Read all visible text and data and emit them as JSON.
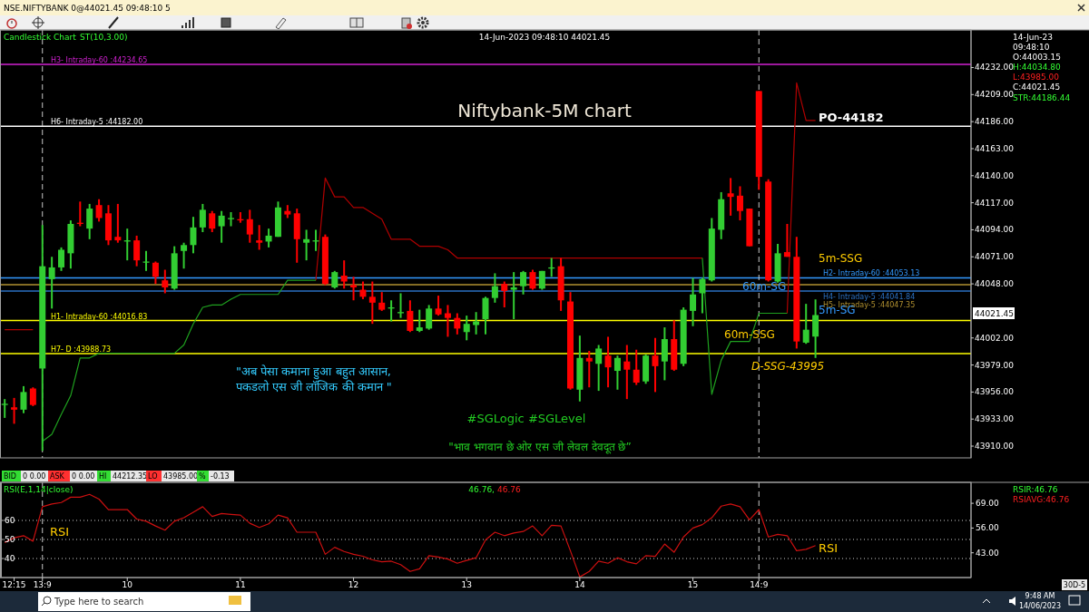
{
  "chart_data": [
    {
      "type": "candlestick",
      "title": "Niftybank-5M chart",
      "categories": [
        null,
        "12:15",
        null,
        null,
        "13:9",
        null,
        null,
        null,
        null,
        null,
        null,
        null,
        null,
        "10",
        null,
        null,
        null,
        null,
        null,
        null,
        null,
        null,
        null,
        null,
        null,
        "11",
        null,
        null,
        null,
        null,
        null,
        null,
        null,
        null,
        null,
        null,
        null,
        "12",
        null,
        null,
        null,
        null,
        null,
        null,
        null,
        null,
        null,
        null,
        null,
        "13",
        null,
        null,
        null,
        null,
        null,
        null,
        null,
        null,
        null,
        null,
        null,
        "14",
        null,
        null,
        null,
        null,
        null,
        null,
        null,
        null,
        null,
        null,
        null,
        "15",
        null,
        null,
        null,
        null,
        null,
        null,
        "14:9",
        null,
        null,
        null,
        null,
        null,
        null,
        null,
        null,
        null,
        null,
        null,
        null,
        null,
        null,
        null,
        null,
        null,
        null,
        null,
        null,
        null,
        null
      ],
      "ohlc": [
        [
          43945,
          43950,
          43934,
          43946
        ],
        [
          43943,
          43951,
          43929,
          43941
        ],
        [
          43941,
          43961,
          43938,
          43956
        ],
        [
          43959,
          43960,
          43944,
          43945
        ],
        [
          43976,
          44098,
          43906,
          44063
        ],
        [
          44052,
          44071,
          44027,
          44062
        ],
        [
          44062,
          44079,
          44059,
          44077
        ],
        [
          44074,
          44102,
          44061,
          44099
        ],
        [
          44100,
          44118,
          44097,
          44099
        ],
        [
          44095,
          44116,
          44086,
          44112
        ],
        [
          44115,
          44120,
          44101,
          44104
        ],
        [
          44108,
          44115,
          44081,
          44085
        ],
        [
          44088,
          44116,
          44083,
          44085
        ],
        [
          44084,
          44095,
          44068,
          44085
        ],
        [
          44085,
          44089,
          44063,
          44068
        ],
        [
          44066,
          44076,
          44059,
          44067
        ],
        [
          44066,
          44067,
          44048,
          44054
        ],
        [
          44051,
          44060,
          44040,
          44045
        ],
        [
          44044,
          44080,
          44043,
          44074
        ],
        [
          44076,
          44083,
          44061,
          44081
        ],
        [
          44081,
          44105,
          44074,
          44096
        ],
        [
          44096,
          44116,
          44092,
          44111
        ],
        [
          44108,
          44110,
          44092,
          44095
        ],
        [
          44097,
          44110,
          44083,
          44106
        ],
        [
          44103,
          44109,
          44097,
          44104
        ],
        [
          44103,
          44109,
          44100,
          44102
        ],
        [
          44103,
          44111,
          44083,
          44090
        ],
        [
          44085,
          44098,
          44077,
          44083
        ],
        [
          44084,
          44095,
          44079,
          44089
        ],
        [
          44088,
          44118,
          44088,
          44113
        ],
        [
          44110,
          44115,
          44104,
          44107
        ],
        [
          44108,
          44112,
          44066,
          44086
        ],
        [
          44083,
          44094,
          44068,
          44086
        ],
        [
          44084,
          44094,
          44076,
          44085
        ],
        [
          44088,
          44090,
          44047,
          44048
        ],
        [
          44045,
          44059,
          44044,
          44058
        ],
        [
          44055,
          44068,
          44044,
          44050
        ],
        [
          44047,
          44054,
          44034,
          44045
        ],
        [
          44043,
          44050,
          44035,
          44037
        ],
        [
          44037,
          44050,
          44014,
          44032
        ],
        [
          44032,
          44041,
          44025,
          44026
        ],
        [
          44027,
          44034,
          44016,
          44028
        ],
        [
          44023,
          44040,
          44019,
          44024
        ],
        [
          44025,
          44034,
          44007,
          44008
        ],
        [
          44008,
          44026,
          44007,
          44011
        ],
        [
          44010,
          44030,
          44009,
          44027
        ],
        [
          44027,
          44038,
          44021,
          44022
        ],
        [
          44023,
          44030,
          44003,
          44019
        ],
        [
          44019,
          44023,
          44005,
          44010
        ],
        [
          44007,
          44021,
          44000,
          44014
        ],
        [
          44013,
          44024,
          44005,
          44016
        ],
        [
          44018,
          44037,
          44005,
          44036
        ],
        [
          44036,
          44057,
          44032,
          44046
        ],
        [
          44048,
          44050,
          44028,
          44042
        ],
        [
          44043,
          44058,
          44018,
          44045
        ],
        [
          44046,
          44059,
          44039,
          44058
        ],
        [
          44058,
          44060,
          44043,
          44044
        ],
        [
          44044,
          44059,
          44043,
          44059
        ],
        [
          44061,
          44070,
          44054,
          44062
        ],
        [
          44063,
          44070,
          44025,
          44034
        ],
        [
          44033,
          44041,
          43958,
          43959
        ],
        [
          43958,
          44004,
          43948,
          43985
        ],
        [
          43985,
          43991,
          43960,
          43982
        ],
        [
          43980,
          43996,
          43957,
          43993
        ],
        [
          43987,
          44003,
          43960,
          43977
        ],
        [
          43974,
          43987,
          43958,
          43985
        ],
        [
          43982,
          43996,
          43950,
          43975
        ],
        [
          43975,
          43992,
          43962,
          43964
        ],
        [
          43965,
          43988,
          43963,
          43987
        ],
        [
          43987,
          44002,
          43956,
          43978
        ],
        [
          43982,
          44011,
          43966,
          44001
        ],
        [
          44001,
          44017,
          43974,
          43975
        ],
        [
          43980,
          44028,
          43978,
          44026
        ],
        [
          44025,
          44053,
          44012,
          44039
        ],
        [
          44040,
          44053,
          44023,
          44052
        ],
        [
          44051,
          44104,
          44050,
          44095
        ],
        [
          44094,
          44126,
          44086,
          44120
        ],
        [
          44125,
          44138,
          44106,
          44122
        ],
        [
          44123,
          44131,
          44102,
          44110
        ],
        [
          44112,
          44112,
          44080,
          44080
        ],
        [
          44212,
          44212,
          44128,
          44139
        ],
        [
          44135,
          44137,
          44050,
          44051
        ],
        [
          44050,
          44082,
          44049,
          44074
        ],
        [
          44075,
          44099,
          44071,
          44071
        ],
        [
          44071,
          44088,
          43993,
          43999
        ],
        [
          43998,
          44031,
          43997,
          44009
        ],
        [
          44003.15,
          44034.8,
          43985,
          44021.45
        ],
        null,
        null,
        null,
        null,
        null,
        null,
        null,
        null,
        null,
        null,
        null,
        null,
        null,
        null,
        null,
        null
      ],
      "colors": [
        "#32cd32",
        "#ff0000",
        "#32cd32",
        "#ff0000",
        "#32cd32",
        "#32cd32",
        "#32cd32",
        "#32cd32",
        "#ff0000",
        "#32cd32",
        "#ff0000",
        "#ff0000",
        "#ff0000",
        "#32cd32",
        "#ff0000",
        "#32cd32",
        "#ff0000",
        "#ff0000",
        "#32cd32",
        "#32cd32",
        "#32cd32",
        "#32cd32",
        "#ff0000",
        "#32cd32",
        "#32cd32",
        "#ff0000",
        "#ff0000",
        "#ff0000",
        "#32cd32",
        "#32cd32",
        "#ff0000",
        "#ff0000",
        "#32cd32",
        "#32cd32",
        "#ff0000",
        "#32cd32",
        "#ff0000",
        "#ff0000",
        "#ff0000",
        "#ff0000",
        "#ff0000",
        "#32cd32",
        "#32cd32",
        "#ff0000",
        "#32cd32",
        "#32cd32",
        "#ff0000",
        "#ff0000",
        "#ff0000",
        "#32cd32",
        "#32cd32",
        "#32cd32",
        "#32cd32",
        "#ff0000",
        "#32cd32",
        "#32cd32",
        "#ff0000",
        "#32cd32",
        "#32cd32",
        "#ff0000",
        "#ff0000",
        "#32cd32",
        "#ff0000",
        "#32cd32",
        "#ff0000",
        "#32cd32",
        "#ff0000",
        "#ff0000",
        "#32cd32",
        "#ff0000",
        "#32cd32",
        "#ff0000",
        "#32cd32",
        "#32cd32",
        "#32cd32",
        "#32cd32",
        "#32cd32",
        "#ff0000",
        "#ff0000",
        "#ff0000",
        "#ff0000",
        "#ff0000",
        "#32cd32",
        "#ff0000",
        "#ff0000",
        "#32cd32",
        "#32cd32",
        null,
        null,
        null,
        null,
        null,
        null,
        null,
        null,
        null,
        null,
        null,
        null,
        null,
        null,
        null,
        null
      ],
      "series": [
        {
          "type": "line",
          "color": "#b00000",
          "values": [
            44009,
            44009,
            44009,
            44009,
            null,
            null,
            null,
            null,
            null,
            null,
            null,
            null,
            null,
            null,
            null,
            null,
            null,
            null,
            null,
            null,
            null,
            null,
            null,
            null,
            null,
            null,
            null,
            null,
            null,
            null,
            null,
            null,
            null,
            44051,
            44138,
            44122,
            44122,
            44113,
            44113,
            44108,
            44103,
            44086,
            44086,
            44086,
            44080,
            44080,
            44080,
            44077,
            44070,
            44070,
            44070,
            44070,
            44070,
            44070,
            44070,
            44070,
            44070,
            44070,
            44070,
            44070,
            44070,
            44070,
            44070,
            44070,
            44070,
            44070,
            44070,
            44070,
            44070,
            44070,
            44070,
            44070,
            44070,
            44070,
            44070,
            null,
            null,
            null,
            null,
            null,
            null,
            null,
            null,
            44023,
            44219,
            44187,
            44187,
            null,
            null,
            null,
            null,
            null,
            null,
            null,
            null,
            null,
            null,
            null,
            null,
            null,
            null,
            null,
            null
          ]
        },
        {
          "type": "line",
          "color": "#1fa01f",
          "values": [
            null,
            null,
            null,
            null,
            43914,
            43920,
            43937,
            43953,
            43985,
            43985,
            43989,
            43989,
            43989,
            43989,
            43989,
            43989,
            43989,
            43989,
            43989,
            43996,
            44014,
            44028,
            44030,
            44030,
            44035,
            44039,
            44039,
            44039,
            44039,
            44039,
            44051,
            44051,
            44051,
            44051,
            null,
            null,
            null,
            null,
            null,
            null,
            null,
            null,
            null,
            null,
            null,
            null,
            null,
            null,
            null,
            null,
            null,
            null,
            null,
            null,
            null,
            null,
            null,
            null,
            null,
            null,
            null,
            null,
            null,
            null,
            null,
            null,
            null,
            null,
            null,
            null,
            null,
            null,
            null,
            null,
            44070,
            43954,
            43983,
            43999,
            43999,
            43999,
            44023,
            44023,
            44023,
            44023,
            null,
            null,
            null,
            null,
            null,
            null,
            null,
            null,
            null,
            null,
            null,
            null,
            null,
            null,
            null,
            null,
            null,
            null,
            null
          ]
        }
      ],
      "ylim": [
        43900,
        44264
      ],
      "yticks": [
        {
          "value": 43910,
          "label": "43910.00"
        },
        {
          "value": 43933,
          "label": "43933.00"
        },
        {
          "value": 43956,
          "label": "43956.00"
        },
        {
          "value": 43979,
          "label": "43979.00"
        },
        {
          "value": 44002,
          "label": "44002.00"
        },
        {
          "value": 44048,
          "label": "44048.00"
        },
        {
          "value": 44071,
          "label": "44071.00"
        },
        {
          "value": 44094,
          "label": "44094.00"
        },
        {
          "value": 44117,
          "label": "44117.00"
        },
        {
          "value": 44140,
          "label": "44140.00"
        },
        {
          "value": 44163,
          "label": "44163.00"
        },
        {
          "value": 44186,
          "label": "44186.00"
        },
        {
          "value": 44209,
          "label": "44209.00"
        },
        {
          "value": 44232,
          "label": "44232.00"
        }
      ],
      "tick_labels": "y",
      "ref_lines": [
        {
          "axis": "y",
          "value": 44234.65,
          "label": "H3- Intraday-60 :44234.65",
          "color": "#d020d0"
        },
        {
          "axis": "y",
          "value": 44182,
          "label": "H6- Intraday-5 :44182.00",
          "color": "#ffffff"
        },
        {
          "axis": "y",
          "value": 44053.13,
          "label": "H2- Intraday-60 :44053.13",
          "color": "#3399ff"
        },
        {
          "axis": "y",
          "value": 44047.35,
          "label": "H5- Intraday-5 :44047.35",
          "color": "#b09030"
        },
        {
          "axis": "y",
          "value": 44041.84,
          "label": "H4- Intraday-5 :44041.84",
          "color": "#2a6fc0"
        },
        {
          "axis": "y",
          "value": 44016.83,
          "label": "H1- Intraday-60 :44016.83",
          "color": "#ffff00"
        },
        {
          "axis": "y",
          "value": 43988.73,
          "label": "H7- D :43988.73",
          "color": "#ffff00"
        },
        {
          "axis": "x",
          "value": "13:9",
          "color": "#c8c8c8",
          "line_style": "dashed"
        },
        {
          "axis": "x",
          "value": "14:9",
          "color": "#c8c8c8",
          "line_style": "dashed"
        }
      ],
      "annotations": [
        "NSE.NIFTYBANK 0@44021.45 09:48:10 5",
        "Candlestick Chart",
        "ST(10,3.00)",
        "14-Jun-2023 09:48:10 44021.45",
        "14-Jun-23",
        "09:48:10",
        "O:44003.15",
        "H:44034.80",
        "L:43985.00",
        "C:44021.45",
        "STR:44186.44",
        "PO-44182",
        "5m-SSG",
        "60m-SG",
        "5m-SG",
        "60m-SSG",
        "D-SSG-43995",
        "\"अब पेसा कमाना हुआ बहुत आसान,",
        "पकडलो एस जी लॉजिक की कमान \"",
        "#SGLogic  #SGLevel",
        "\"भाव भगवान छे ओर एस जी लेवल देवदूत छे”",
        "44021.45",
        "BID",
        "0 0.00",
        "ASK",
        "0 0.00",
        "HI",
        "44212.35",
        "LO",
        "43985.00",
        "%",
        "-0.13",
        "Type here to search",
        "9:48 AM",
        "14/06/2023",
        "30D-5"
      ]
    },
    {
      "type": "line",
      "categories": [
        null,
        "12:15",
        null,
        null,
        "13:9",
        null,
        null,
        null,
        null,
        null,
        null,
        null,
        null,
        "10",
        null,
        null,
        null,
        null,
        null,
        null,
        null,
        null,
        null,
        null,
        null,
        "11",
        null,
        null,
        null,
        null,
        null,
        null,
        null,
        null,
        null,
        null,
        null,
        "12",
        null,
        null,
        null,
        null,
        null,
        null,
        null,
        null,
        null,
        null,
        null,
        "13",
        null,
        null,
        null,
        null,
        null,
        null,
        null,
        null,
        null,
        null,
        null,
        "14",
        null,
        null,
        null,
        null,
        null,
        null,
        null,
        null,
        null,
        null,
        null,
        "15",
        null,
        null,
        null,
        null,
        null,
        null,
        "14:9",
        null,
        null,
        null,
        null,
        null,
        null,
        null,
        null,
        null,
        null,
        null,
        null,
        null,
        null,
        null,
        null,
        null,
        null,
        null,
        null,
        null,
        null
      ],
      "series": [
        {
          "color": "#cc1010",
          "values": [
            48.4,
            50.9,
            52,
            49.1,
            67.2,
            68.6,
            69.4,
            72.2,
            72.2,
            73.7,
            71.2,
            65.7,
            65.7,
            65.7,
            60.7,
            59.6,
            57.1,
            54.9,
            59.6,
            61.4,
            64.3,
            67.2,
            62.1,
            63.6,
            63.2,
            62.8,
            58.5,
            56.3,
            58.2,
            62.8,
            61.4,
            53.8,
            53.8,
            53.8,
            42.2,
            45.9,
            43.7,
            42.2,
            41.2,
            39.3,
            38.3,
            38.6,
            36.8,
            33.2,
            34.6,
            41.5,
            40.8,
            39.7,
            37.5,
            39,
            40.4,
            49.8,
            53.8,
            52,
            53.4,
            54.2,
            57.1,
            52,
            57.4,
            57.1,
            44.1,
            30.3,
            33.2,
            38.6,
            37.5,
            40.4,
            38.3,
            37.2,
            41.5,
            41.1,
            47.6,
            43.3,
            51.3,
            56,
            57.8,
            61.4,
            67.5,
            68.6,
            67.2,
            60.3,
            65.7,
            51.3,
            52.7,
            52,
            44.1,
            44.8,
            46.76,
            null,
            null,
            null,
            null,
            null,
            null,
            null,
            null,
            null,
            null,
            null,
            null,
            null,
            null,
            null,
            null
          ]
        }
      ],
      "ylim": [
        30,
        80
      ],
      "yticks": [
        60,
        50,
        40
      ],
      "y2lim": [
        30,
        80
      ],
      "y2ticks": [
        {
          "value": 69,
          "label": "69.00"
        },
        {
          "value": 56,
          "label": "56.00"
        },
        {
          "value": 43,
          "label": "43.00"
        }
      ],
      "grid": "y",
      "ref_lines": [
        {
          "axis": "x",
          "value": "13:9",
          "color": "#c8c8c8",
          "line_style": "dashed"
        },
        {
          "axis": "x",
          "value": "14:9",
          "color": "#c8c8c8",
          "line_style": "dashed"
        }
      ],
      "annotations": [
        "RSI(E,1,14|close)",
        "46.76,",
        "46.76",
        "RSIR:46.76",
        "RSIAVG:46.76",
        "RSI",
        "RSI"
      ]
    }
  ]
}
